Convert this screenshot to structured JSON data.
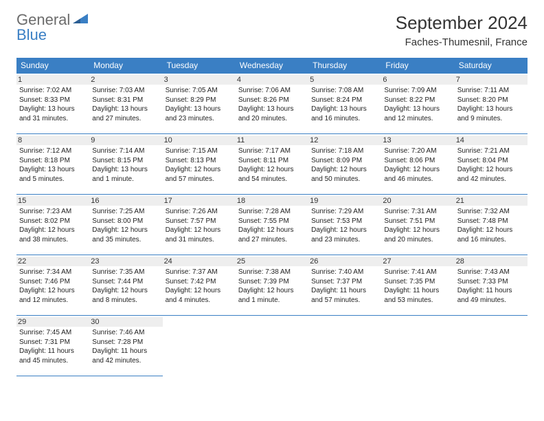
{
  "logo": {
    "text1": "General",
    "text2": "Blue"
  },
  "title": "September 2024",
  "location": "Faches-Thumesnil, France",
  "header_bg": "#3a7fc4",
  "header_fg": "#ffffff",
  "daynum_bg": "#eeeeee",
  "border_color": "#3a7fc4",
  "weekdays": [
    "Sunday",
    "Monday",
    "Tuesday",
    "Wednesday",
    "Thursday",
    "Friday",
    "Saturday"
  ],
  "days": [
    {
      "n": "1",
      "sr": "Sunrise: 7:02 AM",
      "ss": "Sunset: 8:33 PM",
      "dl": "Daylight: 13 hours and 31 minutes."
    },
    {
      "n": "2",
      "sr": "Sunrise: 7:03 AM",
      "ss": "Sunset: 8:31 PM",
      "dl": "Daylight: 13 hours and 27 minutes."
    },
    {
      "n": "3",
      "sr": "Sunrise: 7:05 AM",
      "ss": "Sunset: 8:29 PM",
      "dl": "Daylight: 13 hours and 23 minutes."
    },
    {
      "n": "4",
      "sr": "Sunrise: 7:06 AM",
      "ss": "Sunset: 8:26 PM",
      "dl": "Daylight: 13 hours and 20 minutes."
    },
    {
      "n": "5",
      "sr": "Sunrise: 7:08 AM",
      "ss": "Sunset: 8:24 PM",
      "dl": "Daylight: 13 hours and 16 minutes."
    },
    {
      "n": "6",
      "sr": "Sunrise: 7:09 AM",
      "ss": "Sunset: 8:22 PM",
      "dl": "Daylight: 13 hours and 12 minutes."
    },
    {
      "n": "7",
      "sr": "Sunrise: 7:11 AM",
      "ss": "Sunset: 8:20 PM",
      "dl": "Daylight: 13 hours and 9 minutes."
    },
    {
      "n": "8",
      "sr": "Sunrise: 7:12 AM",
      "ss": "Sunset: 8:18 PM",
      "dl": "Daylight: 13 hours and 5 minutes."
    },
    {
      "n": "9",
      "sr": "Sunrise: 7:14 AM",
      "ss": "Sunset: 8:15 PM",
      "dl": "Daylight: 13 hours and 1 minute."
    },
    {
      "n": "10",
      "sr": "Sunrise: 7:15 AM",
      "ss": "Sunset: 8:13 PM",
      "dl": "Daylight: 12 hours and 57 minutes."
    },
    {
      "n": "11",
      "sr": "Sunrise: 7:17 AM",
      "ss": "Sunset: 8:11 PM",
      "dl": "Daylight: 12 hours and 54 minutes."
    },
    {
      "n": "12",
      "sr": "Sunrise: 7:18 AM",
      "ss": "Sunset: 8:09 PM",
      "dl": "Daylight: 12 hours and 50 minutes."
    },
    {
      "n": "13",
      "sr": "Sunrise: 7:20 AM",
      "ss": "Sunset: 8:06 PM",
      "dl": "Daylight: 12 hours and 46 minutes."
    },
    {
      "n": "14",
      "sr": "Sunrise: 7:21 AM",
      "ss": "Sunset: 8:04 PM",
      "dl": "Daylight: 12 hours and 42 minutes."
    },
    {
      "n": "15",
      "sr": "Sunrise: 7:23 AM",
      "ss": "Sunset: 8:02 PM",
      "dl": "Daylight: 12 hours and 38 minutes."
    },
    {
      "n": "16",
      "sr": "Sunrise: 7:25 AM",
      "ss": "Sunset: 8:00 PM",
      "dl": "Daylight: 12 hours and 35 minutes."
    },
    {
      "n": "17",
      "sr": "Sunrise: 7:26 AM",
      "ss": "Sunset: 7:57 PM",
      "dl": "Daylight: 12 hours and 31 minutes."
    },
    {
      "n": "18",
      "sr": "Sunrise: 7:28 AM",
      "ss": "Sunset: 7:55 PM",
      "dl": "Daylight: 12 hours and 27 minutes."
    },
    {
      "n": "19",
      "sr": "Sunrise: 7:29 AM",
      "ss": "Sunset: 7:53 PM",
      "dl": "Daylight: 12 hours and 23 minutes."
    },
    {
      "n": "20",
      "sr": "Sunrise: 7:31 AM",
      "ss": "Sunset: 7:51 PM",
      "dl": "Daylight: 12 hours and 20 minutes."
    },
    {
      "n": "21",
      "sr": "Sunrise: 7:32 AM",
      "ss": "Sunset: 7:48 PM",
      "dl": "Daylight: 12 hours and 16 minutes."
    },
    {
      "n": "22",
      "sr": "Sunrise: 7:34 AM",
      "ss": "Sunset: 7:46 PM",
      "dl": "Daylight: 12 hours and 12 minutes."
    },
    {
      "n": "23",
      "sr": "Sunrise: 7:35 AM",
      "ss": "Sunset: 7:44 PM",
      "dl": "Daylight: 12 hours and 8 minutes."
    },
    {
      "n": "24",
      "sr": "Sunrise: 7:37 AM",
      "ss": "Sunset: 7:42 PM",
      "dl": "Daylight: 12 hours and 4 minutes."
    },
    {
      "n": "25",
      "sr": "Sunrise: 7:38 AM",
      "ss": "Sunset: 7:39 PM",
      "dl": "Daylight: 12 hours and 1 minute."
    },
    {
      "n": "26",
      "sr": "Sunrise: 7:40 AM",
      "ss": "Sunset: 7:37 PM",
      "dl": "Daylight: 11 hours and 57 minutes."
    },
    {
      "n": "27",
      "sr": "Sunrise: 7:41 AM",
      "ss": "Sunset: 7:35 PM",
      "dl": "Daylight: 11 hours and 53 minutes."
    },
    {
      "n": "28",
      "sr": "Sunrise: 7:43 AM",
      "ss": "Sunset: 7:33 PM",
      "dl": "Daylight: 11 hours and 49 minutes."
    },
    {
      "n": "29",
      "sr": "Sunrise: 7:45 AM",
      "ss": "Sunset: 7:31 PM",
      "dl": "Daylight: 11 hours and 45 minutes."
    },
    {
      "n": "30",
      "sr": "Sunrise: 7:46 AM",
      "ss": "Sunset: 7:28 PM",
      "dl": "Daylight: 11 hours and 42 minutes."
    }
  ]
}
